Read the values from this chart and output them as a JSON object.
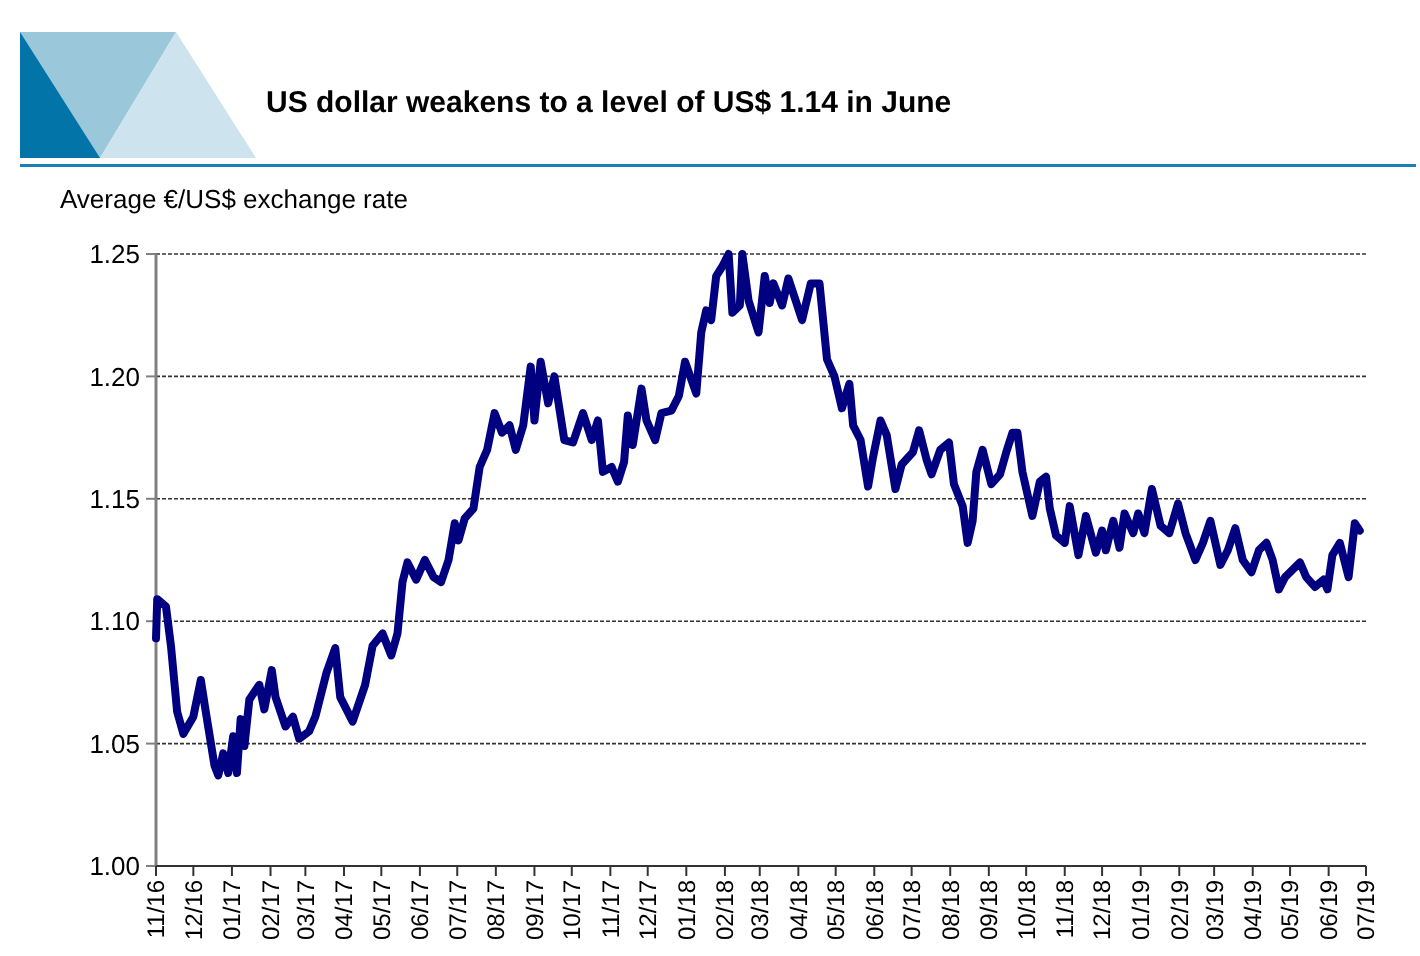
{
  "chart_data": {
    "type": "line",
    "title": "US dollar weakens to a level of US$ 1.14 in June",
    "ylabel": "Average €/US$ exchange rate",
    "x": [
      "2016-11-01",
      "2016-11-02",
      "2016-11-09",
      "2016-11-13",
      "2016-11-18",
      "2016-11-23",
      "2016-12-01",
      "2016-12-07",
      "2016-12-11",
      "2016-12-18",
      "2016-12-21",
      "2016-12-25",
      "2016-12-29",
      "2017-01-02",
      "2017-01-05",
      "2017-01-08",
      "2017-01-11",
      "2017-01-15",
      "2017-01-23",
      "2017-01-27",
      "2017-02-02",
      "2017-02-05",
      "2017-02-13",
      "2017-02-19",
      "2017-02-24",
      "2017-03-04",
      "2017-03-09",
      "2017-03-18",
      "2017-03-25",
      "2017-03-29",
      "2017-04-08",
      "2017-04-18",
      "2017-04-24",
      "2017-05-02",
      "2017-05-09",
      "2017-05-14",
      "2017-05-18",
      "2017-05-22",
      "2017-05-29",
      "2017-06-05",
      "2017-06-12",
      "2017-06-18",
      "2017-06-24",
      "2017-06-29",
      "2017-07-02",
      "2017-07-07",
      "2017-07-14",
      "2017-07-19",
      "2017-07-25",
      "2017-07-31",
      "2017-08-06",
      "2017-08-12",
      "2017-08-17",
      "2017-08-23",
      "2017-08-29",
      "2017-09-01",
      "2017-09-06",
      "2017-09-12",
      "2017-09-17",
      "2017-09-25",
      "2017-10-02",
      "2017-10-10",
      "2017-10-17",
      "2017-10-22",
      "2017-10-26",
      "2017-11-02",
      "2017-11-07",
      "2017-11-12",
      "2017-11-15",
      "2017-11-19",
      "2017-11-26",
      "2017-11-30",
      "2017-12-07",
      "2017-12-12",
      "2017-12-20",
      "2017-12-26",
      "2017-12-31",
      "2018-01-09",
      "2018-01-13",
      "2018-01-17",
      "2018-01-21",
      "2018-01-25",
      "2018-01-30",
      "2018-02-04",
      "2018-02-07",
      "2018-02-13",
      "2018-02-15",
      "2018-02-20",
      "2018-02-28",
      "2018-03-05",
      "2018-03-09",
      "2018-03-12",
      "2018-03-19",
      "2018-03-24",
      "2018-04-04",
      "2018-04-11",
      "2018-04-18",
      "2018-04-24",
      "2018-04-30",
      "2018-05-06",
      "2018-05-12",
      "2018-05-15",
      "2018-05-21",
      "2018-05-27",
      "2018-05-31",
      "2018-06-06",
      "2018-06-11",
      "2018-06-18",
      "2018-06-23",
      "2018-07-02",
      "2018-07-07",
      "2018-07-13",
      "2018-07-17",
      "2018-07-24",
      "2018-07-31",
      "2018-08-04",
      "2018-08-11",
      "2018-08-15",
      "2018-08-19",
      "2018-08-22",
      "2018-08-27",
      "2018-09-03",
      "2018-09-10",
      "2018-09-15",
      "2018-09-20",
      "2018-09-24",
      "2018-09-28",
      "2018-10-06",
      "2018-10-12",
      "2018-10-17",
      "2018-10-20",
      "2018-10-25",
      "2018-11-01",
      "2018-11-05",
      "2018-11-12",
      "2018-11-18",
      "2018-11-26",
      "2018-12-01",
      "2018-12-04",
      "2018-12-10",
      "2018-12-15",
      "2018-12-19",
      "2018-12-26",
      "2018-12-30",
      "2019-01-04",
      "2019-01-10",
      "2019-01-17",
      "2019-01-24",
      "2019-01-31",
      "2019-02-06",
      "2019-02-14",
      "2019-02-20",
      "2019-02-26",
      "2019-03-06",
      "2019-03-12",
      "2019-03-18",
      "2019-03-24",
      "2019-03-31",
      "2019-04-06",
      "2019-04-12",
      "2019-04-17",
      "2019-04-22",
      "2019-04-27",
      "2019-05-09",
      "2019-05-14",
      "2019-05-21",
      "2019-05-28",
      "2019-05-31",
      "2019-06-04",
      "2019-06-10",
      "2019-06-17",
      "2019-06-22",
      "2019-06-26"
    ],
    "series": [
      {
        "color": "#000080",
        "values": [
          1.093,
          1.109,
          1.106,
          1.09,
          1.063,
          1.054,
          1.061,
          1.076,
          1.063,
          1.041,
          1.037,
          1.046,
          1.038,
          1.053,
          1.038,
          1.06,
          1.049,
          1.068,
          1.074,
          1.064,
          1.08,
          1.069,
          1.057,
          1.061,
          1.052,
          1.055,
          1.061,
          1.079,
          1.089,
          1.069,
          1.059,
          1.074,
          1.09,
          1.095,
          1.086,
          1.095,
          1.116,
          1.124,
          1.117,
          1.125,
          1.118,
          1.116,
          1.125,
          1.14,
          1.133,
          1.142,
          1.146,
          1.163,
          1.17,
          1.185,
          1.177,
          1.18,
          1.17,
          1.18,
          1.204,
          1.182,
          1.206,
          1.189,
          1.2,
          1.174,
          1.173,
          1.185,
          1.174,
          1.182,
          1.161,
          1.163,
          1.157,
          1.165,
          1.184,
          1.172,
          1.195,
          1.182,
          1.174,
          1.185,
          1.186,
          1.192,
          1.206,
          1.193,
          1.218,
          1.227,
          1.223,
          1.241,
          1.245,
          1.25,
          1.226,
          1.229,
          1.25,
          1.231,
          1.218,
          1.241,
          1.23,
          1.238,
          1.229,
          1.24,
          1.223,
          1.238,
          1.238,
          1.207,
          1.2,
          1.187,
          1.197,
          1.18,
          1.174,
          1.155,
          1.167,
          1.182,
          1.176,
          1.154,
          1.164,
          1.169,
          1.178,
          1.166,
          1.16,
          1.17,
          1.173,
          1.156,
          1.147,
          1.132,
          1.141,
          1.161,
          1.17,
          1.156,
          1.16,
          1.169,
          1.177,
          1.177,
          1.161,
          1.143,
          1.157,
          1.159,
          1.146,
          1.135,
          1.132,
          1.147,
          1.127,
          1.143,
          1.128,
          1.137,
          1.129,
          1.141,
          1.13,
          1.144,
          1.136,
          1.144,
          1.136,
          1.154,
          1.139,
          1.136,
          1.148,
          1.136,
          1.125,
          1.132,
          1.141,
          1.123,
          1.129,
          1.138,
          1.125,
          1.12,
          1.129,
          1.132,
          1.125,
          1.113,
          1.118,
          1.124,
          1.118,
          1.114,
          1.117,
          1.113,
          1.127,
          1.132,
          1.118,
          1.14,
          1.137
        ]
      }
    ],
    "xlim": [
      "2016-11-01",
      "2019-07-01"
    ],
    "xticks": [
      {
        "value": "2016-11-01",
        "label": "11/16"
      },
      {
        "value": "2016-12-01",
        "label": "12/16"
      },
      {
        "value": "2017-01-01",
        "label": "01/17"
      },
      {
        "value": "2017-02-01",
        "label": "02/17"
      },
      {
        "value": "2017-03-01",
        "label": "03/17"
      },
      {
        "value": "2017-04-01",
        "label": "04/17"
      },
      {
        "value": "2017-05-01",
        "label": "05/17"
      },
      {
        "value": "2017-06-01",
        "label": "06/17"
      },
      {
        "value": "2017-07-01",
        "label": "07/17"
      },
      {
        "value": "2017-08-01",
        "label": "08/17"
      },
      {
        "value": "2017-09-01",
        "label": "09/17"
      },
      {
        "value": "2017-10-01",
        "label": "10/17"
      },
      {
        "value": "2017-11-01",
        "label": "11/17"
      },
      {
        "value": "2017-12-01",
        "label": "12/17"
      },
      {
        "value": "2018-01-01",
        "label": "01/18"
      },
      {
        "value": "2018-02-01",
        "label": "02/18"
      },
      {
        "value": "2018-03-01",
        "label": "03/18"
      },
      {
        "value": "2018-04-01",
        "label": "04/18"
      },
      {
        "value": "2018-05-01",
        "label": "05/18"
      },
      {
        "value": "2018-06-01",
        "label": "06/18"
      },
      {
        "value": "2018-07-01",
        "label": "07/18"
      },
      {
        "value": "2018-08-01",
        "label": "08/18"
      },
      {
        "value": "2018-09-01",
        "label": "09/18"
      },
      {
        "value": "2018-10-01",
        "label": "10/18"
      },
      {
        "value": "2018-11-01",
        "label": "11/18"
      },
      {
        "value": "2018-12-01",
        "label": "12/18"
      },
      {
        "value": "2019-01-01",
        "label": "01/19"
      },
      {
        "value": "2019-02-01",
        "label": "02/19"
      },
      {
        "value": "2019-03-01",
        "label": "03/19"
      },
      {
        "value": "2019-04-01",
        "label": "04/19"
      },
      {
        "value": "2019-05-01",
        "label": "05/19"
      },
      {
        "value": "2019-06-01",
        "label": "06/19"
      },
      {
        "value": "2019-07-01",
        "label": "07/19"
      }
    ],
    "ylim": [
      1.0,
      1.25
    ],
    "yticks": [
      {
        "value": 1.0,
        "label": "1.00"
      },
      {
        "value": 1.05,
        "label": "1.05"
      },
      {
        "value": 1.1,
        "label": "1.10"
      },
      {
        "value": 1.15,
        "label": "1.15"
      },
      {
        "value": 1.2,
        "label": "1.20"
      },
      {
        "value": 1.25,
        "label": "1.25"
      }
    ],
    "grid": "y",
    "marker": "none",
    "line_style": "solid"
  }
}
